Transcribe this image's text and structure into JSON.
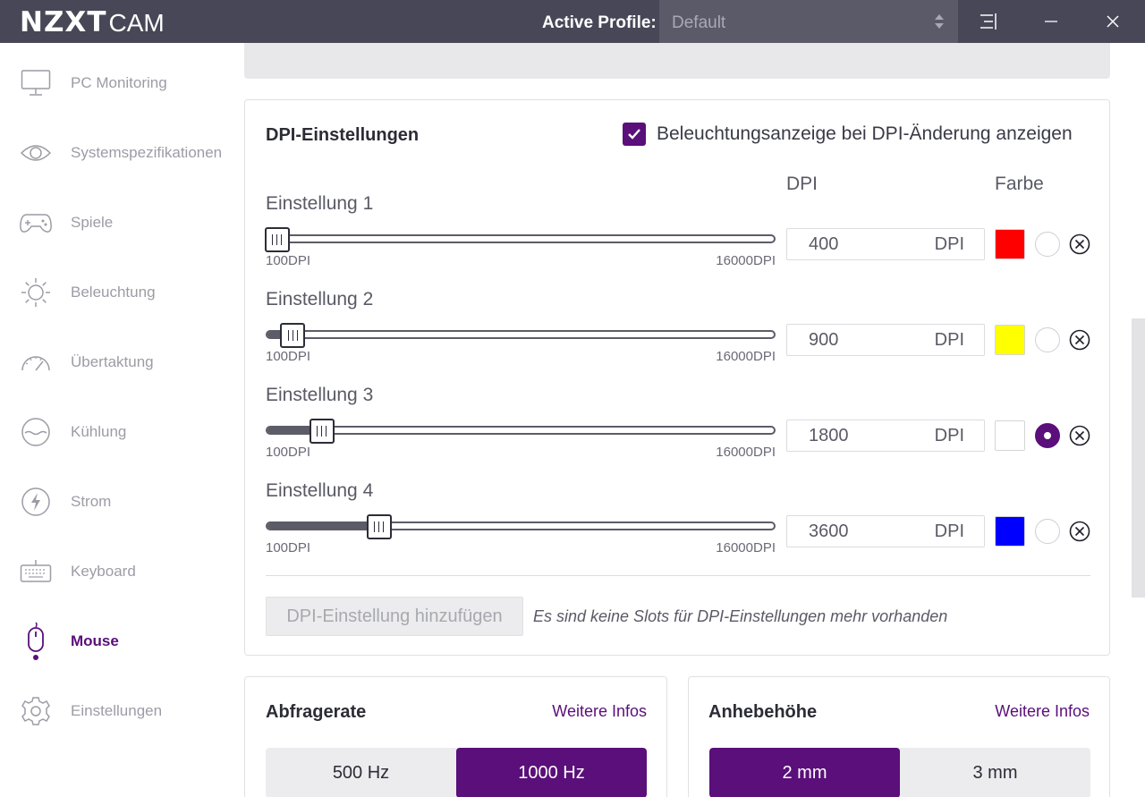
{
  "app": {
    "logo_bold": "NZXT",
    "logo_light": "CAM",
    "profile_label": "Active Profile:",
    "profile_value": "Default"
  },
  "sidebar": {
    "items": [
      {
        "label": "PC Monitoring",
        "icon": "monitor-icon",
        "active": false
      },
      {
        "label": "Systemspezifikationen",
        "icon": "eye-icon",
        "active": false
      },
      {
        "label": "Spiele",
        "icon": "gamepad-icon",
        "active": false
      },
      {
        "label": "Beleuchtung",
        "icon": "sun-icon",
        "active": false
      },
      {
        "label": "Übertaktung",
        "icon": "speedometer-icon",
        "active": false
      },
      {
        "label": "Kühlung",
        "icon": "cooling-icon",
        "active": false
      },
      {
        "label": "Strom",
        "icon": "lightning-icon",
        "active": false
      },
      {
        "label": "Keyboard",
        "icon": "keyboard-icon",
        "active": false
      },
      {
        "label": "Mouse",
        "icon": "mouse-icon",
        "active": true
      },
      {
        "label": "Einstellungen",
        "icon": "gear-icon",
        "active": false
      }
    ]
  },
  "dpi": {
    "title": "DPI-Einstellungen",
    "show_lighting_label": "Beleuchtungsanzeige bei DPI-Änderung anzeigen",
    "show_lighting_checked": true,
    "col_dpi": "DPI",
    "col_color": "Farbe",
    "min_label": "100DPI",
    "max_label": "16000DPI",
    "min": 100,
    "max": 16000,
    "settings": [
      {
        "label": "Einstellung 1",
        "value": "400",
        "unit": "DPI",
        "color": "#ff0000",
        "selected": false,
        "level": 0.019
      },
      {
        "label": "Einstellung 2",
        "value": "900",
        "unit": "DPI",
        "color": "#ffff00",
        "selected": false,
        "level": 0.05
      },
      {
        "label": "Einstellung 3",
        "value": "1800",
        "unit": "DPI",
        "color": "#ffffff",
        "selected": true,
        "level": 0.107
      },
      {
        "label": "Einstellung 4",
        "value": "3600",
        "unit": "DPI",
        "color": "#0000ff",
        "selected": false,
        "level": 0.22
      }
    ],
    "add_button": "DPI-Einstellung hinzufügen",
    "no_slots_note": "Es sind keine Slots für DPI-Einstellungen mehr vorhanden"
  },
  "polling": {
    "title": "Abfragerate",
    "info": "Weitere Infos",
    "options": [
      "500 Hz",
      "1000 Hz"
    ],
    "selected": "1000 Hz"
  },
  "lift": {
    "title": "Anhebehöhe",
    "info": "Weitere Infos",
    "options": [
      "2 mm",
      "3 mm"
    ],
    "selected": "2 mm"
  },
  "colors": {
    "accent": "#5a0f7a",
    "titlebar": "#474757"
  }
}
